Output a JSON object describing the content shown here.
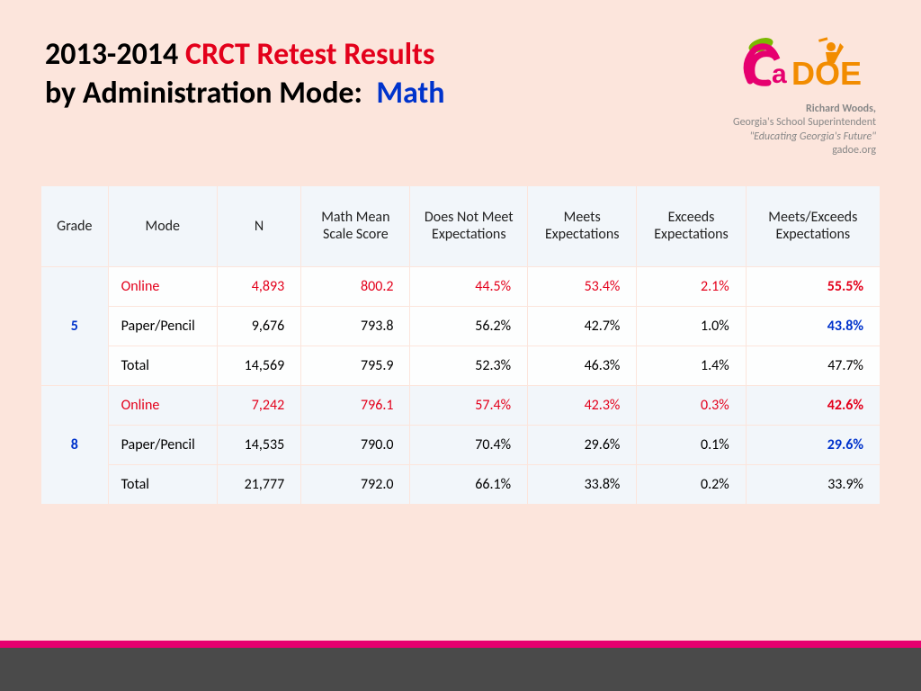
{
  "title": {
    "year": "2013-2014",
    "red": "CRCT Retest Results",
    "line2_black": "by Administration Mode:",
    "line2_blue": "Math"
  },
  "logo": {
    "name": "Richard Woods,",
    "sub": "Georgia's School Superintendent",
    "quote": "\"Educating Georgia's Future\"",
    "url": "gadoe.org"
  },
  "table": {
    "headers": [
      "Grade",
      "Mode",
      "N",
      "Math Mean Scale Score",
      "Does Not Meet Expectations",
      "Meets Expectations",
      "Exceeds Expectations",
      "Meets/Exceeds Expectations"
    ],
    "groups": [
      {
        "grade": "5",
        "rows": [
          {
            "mode": "Online",
            "n": "4,893",
            "score": "800.2",
            "dnm": "44.5%",
            "meets": "53.4%",
            "exceeds": "2.1%",
            "me": "55.5%",
            "style": "online"
          },
          {
            "mode": "Paper/Pencil",
            "n": "9,676",
            "score": "793.8",
            "dnm": "56.2%",
            "meets": "42.7%",
            "exceeds": "1.0%",
            "me": "43.8%",
            "style": "paper"
          },
          {
            "mode": "Total",
            "n": "14,569",
            "score": "795.9",
            "dnm": "52.3%",
            "meets": "46.3%",
            "exceeds": "1.4%",
            "me": "47.7%",
            "style": "total"
          }
        ]
      },
      {
        "grade": "8",
        "rows": [
          {
            "mode": "Online",
            "n": "7,242",
            "score": "796.1",
            "dnm": "57.4%",
            "meets": "42.3%",
            "exceeds": "0.3%",
            "me": "42.6%",
            "style": "online"
          },
          {
            "mode": "Paper/Pencil",
            "n": "14,535",
            "score": "790.0",
            "dnm": "70.4%",
            "meets": "29.6%",
            "exceeds": "0.1%",
            "me": "29.6%",
            "style": "paper"
          },
          {
            "mode": "Total",
            "n": "21,777",
            "score": "792.0",
            "dnm": "66.1%",
            "meets": "33.8%",
            "exceeds": "0.2%",
            "me": "33.9%",
            "style": "total"
          }
        ]
      }
    ]
  },
  "colors": {
    "background": "#fce5dc",
    "red": "#e3001b",
    "blue": "#0033cc",
    "pink_bar": "#e6006f",
    "gray_bar": "#4a4a4a",
    "table_header_bg": "#f2f6fa",
    "table_cell_bg": "#fdfefe"
  }
}
